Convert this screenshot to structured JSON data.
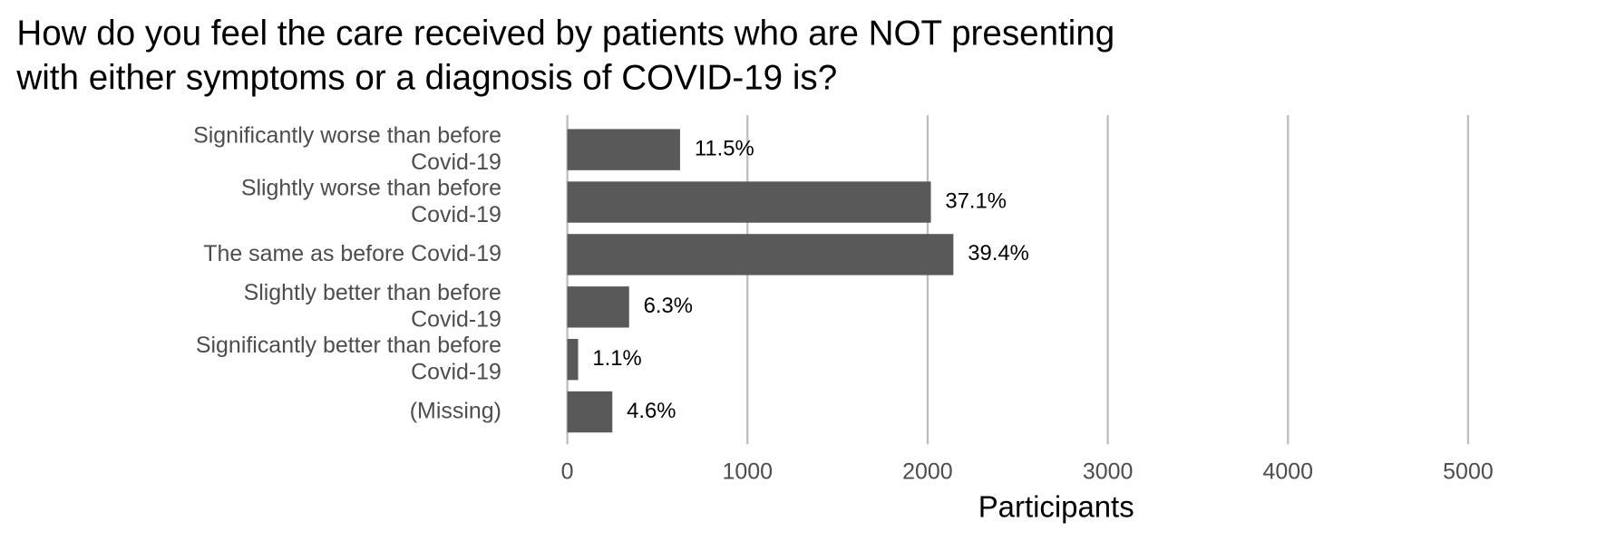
{
  "chart_data": {
    "type": "bar",
    "orientation": "horizontal",
    "title": "How do you feel the care received by patients who are NOT presenting with either symptoms or a diagnosis of COVID-19 is?",
    "categories": [
      "Significantly worse than before Covid-19",
      "Slightly worse than before Covid-19",
      "The same as before Covid-19",
      "Slightly better than before Covid-19",
      "Significantly better than before Covid-19",
      "(Missing)"
    ],
    "values": [
      626,
      2018,
      2143,
      343,
      60,
      250
    ],
    "value_labels": [
      "11.5%",
      "37.1%",
      "39.4%",
      "6.3%",
      "1.1%",
      "4.6%"
    ],
    "color": "#595959",
    "xlabel": "Participants",
    "xlim": [
      0,
      5650
    ],
    "xticks": [
      0,
      1000,
      2000,
      3000,
      4000,
      5000
    ],
    "grid": true
  }
}
